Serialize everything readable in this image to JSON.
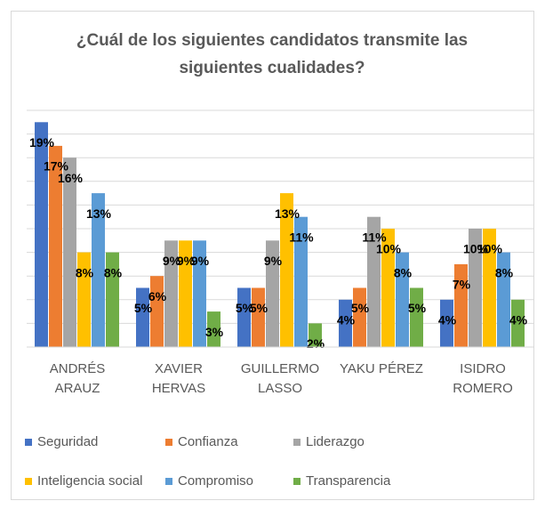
{
  "chart_data": {
    "type": "bar",
    "title": "¿Cuál de los siguientes candidatos transmite las siguientes cualidades?",
    "categories": [
      "ANDRÉS ARAUZ",
      "XAVIER HERVAS",
      "GUILLERMO LASSO",
      "YAKU PÉREZ",
      "ISIDRO ROMERO"
    ],
    "series": [
      {
        "name": "Seguridad",
        "color": "#4472c4",
        "values": [
          19,
          5,
          5,
          4,
          4
        ],
        "value_labels": [
          "19%",
          "5%",
          "5%",
          "4%",
          "4%"
        ]
      },
      {
        "name": "Confianza",
        "color": "#ed7d31",
        "values": [
          17,
          6,
          5,
          5,
          7
        ],
        "value_labels": [
          "17%",
          "6%",
          "5%",
          "5%",
          "7%"
        ]
      },
      {
        "name": "Liderazgo",
        "color": "#a5a5a5",
        "values": [
          16,
          9,
          9,
          11,
          10
        ],
        "value_labels": [
          "16%",
          "9%",
          "9%",
          "11%",
          "10%"
        ]
      },
      {
        "name": "Inteligencia social",
        "color": "#ffc000",
        "values": [
          8,
          9,
          13,
          10,
          10
        ],
        "value_labels": [
          "8%",
          "9%",
          "13%",
          "10%",
          "10%"
        ]
      },
      {
        "name": "Compromiso",
        "color": "#5b9bd5",
        "values": [
          13,
          9,
          11,
          8,
          8
        ],
        "value_labels": [
          "13%",
          "9%",
          "11%",
          "8%",
          "8%"
        ]
      },
      {
        "name": "Transparencia",
        "color": "#70ad47",
        "values": [
          8,
          3,
          2,
          5,
          4
        ],
        "value_labels": [
          "8%",
          "3%",
          "2%",
          "5%",
          "4%"
        ]
      }
    ],
    "ylim": [
      0,
      20
    ],
    "yticks": [
      0,
      2,
      4,
      6,
      8,
      10,
      12,
      14,
      16,
      18,
      20
    ],
    "grid": true,
    "legend": "bottom"
  }
}
